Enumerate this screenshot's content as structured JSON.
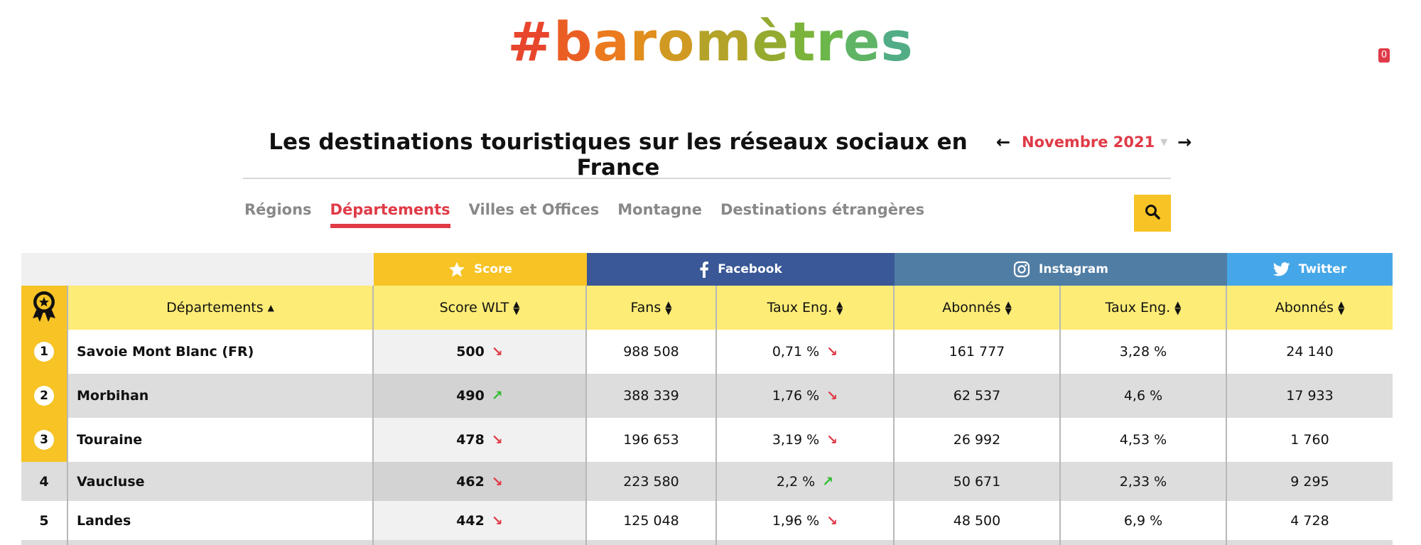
{
  "logo": {
    "text": "#baromètres"
  },
  "cart": {
    "count": "0"
  },
  "header": {
    "title": "Les destinations touristiques sur les réseaux sociaux en France",
    "month": "Novembre 2021"
  },
  "tabs": [
    "Régions",
    "Départements",
    "Villes et Offices",
    "Montagne",
    "Destinations étrangères"
  ],
  "active_tab": "Départements",
  "groups": {
    "score": "Score",
    "facebook": "Facebook",
    "instagram": "Instagram",
    "twitter": "Twitter"
  },
  "columns": {
    "name": "Départements",
    "score": "Score WLT",
    "fans": "Fans",
    "fb_eng": "Taux Eng.",
    "ig_abo": "Abonnés",
    "ig_eng": "Taux Eng.",
    "tw_abo": "Abonnés"
  },
  "rows": [
    {
      "rank": "1",
      "name": "Savoie Mont Blanc (FR)",
      "score": "500",
      "score_trend": "↘",
      "fans": "988 508",
      "fb_eng": "0,71 %",
      "fb_trend": "↘",
      "ig_abo": "161 777",
      "ig_eng": "3,28 %",
      "tw_abo": "24 140"
    },
    {
      "rank": "2",
      "name": "Morbihan",
      "score": "490",
      "score_trend": "↗",
      "fans": "388 339",
      "fb_eng": "1,76 %",
      "fb_trend": "↘",
      "ig_abo": "62 537",
      "ig_eng": "4,6 %",
      "tw_abo": "17 933"
    },
    {
      "rank": "3",
      "name": "Touraine",
      "score": "478",
      "score_trend": "↘",
      "fans": "196 653",
      "fb_eng": "3,19 %",
      "fb_trend": "↘",
      "ig_abo": "26 992",
      "ig_eng": "4,53 %",
      "tw_abo": "1 760"
    },
    {
      "rank": "4",
      "name": "Vaucluse",
      "score": "462",
      "score_trend": "↘",
      "fans": "223 580",
      "fb_eng": "2,2 %",
      "fb_trend": "↗",
      "ig_abo": "50 671",
      "ig_eng": "2,33 %",
      "tw_abo": "9 295"
    },
    {
      "rank": "5",
      "name": "Landes",
      "score": "442",
      "score_trend": "↘",
      "fans": "125 048",
      "fb_eng": "1,96 %",
      "fb_trend": "↘",
      "ig_abo": "48 500",
      "ig_eng": "6,9 %",
      "tw_abo": "4 728"
    }
  ],
  "colors": {
    "accent_red": "#e03a47",
    "score_yellow": "#f7c325",
    "header_yellow": "#fdec76",
    "facebook": "#3a5897",
    "instagram": "#507da4",
    "twitter": "#45a7e8",
    "trend_up": "#2ebd2e",
    "trend_down": "#e03a47"
  },
  "icons": {
    "rank_header": "award-ribbon-icon",
    "score": "star-icon",
    "facebook": "facebook-icon",
    "instagram": "instagram-icon",
    "twitter": "twitter-icon",
    "search": "search-icon",
    "prev": "arrow-left-icon",
    "next": "arrow-right-icon",
    "sort": "sort-icon"
  }
}
